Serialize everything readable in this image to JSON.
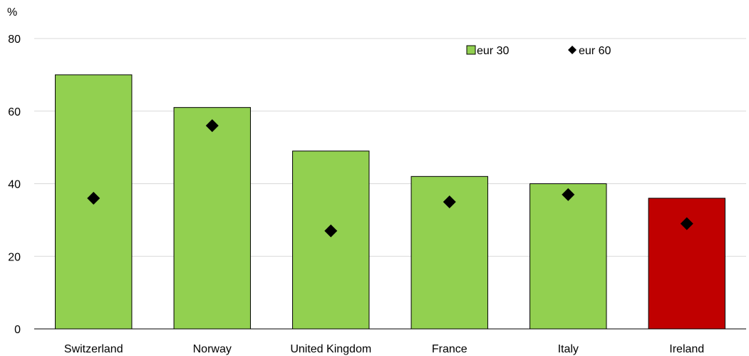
{
  "chart_data": {
    "type": "bar",
    "title": "",
    "xlabel": "",
    "ylabel": "%",
    "ylim": [
      0,
      80
    ],
    "yticks": [
      0,
      20,
      40,
      60,
      80
    ],
    "grid": true,
    "legend_position": "top-right",
    "categories": [
      "Switzerland",
      "Norway",
      "United Kingdom",
      "France",
      "Italy",
      "Ireland"
    ],
    "series": [
      {
        "name": "eur 30",
        "type": "bar",
        "values": [
          70,
          61,
          49,
          42,
          40,
          36
        ],
        "color": "#92d050",
        "highlight": {
          "category": "Ireland",
          "color": "#c00000"
        }
      },
      {
        "name": "eur 60",
        "type": "scatter",
        "marker": "diamond",
        "values": [
          36,
          56,
          27,
          35,
          37,
          29
        ],
        "color": "#000000"
      }
    ]
  }
}
